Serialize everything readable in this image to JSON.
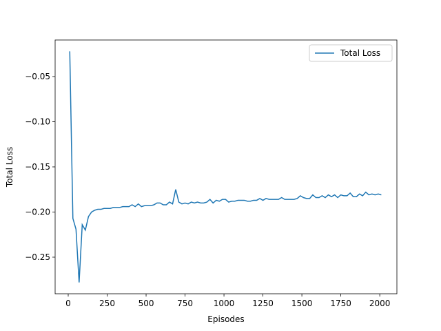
{
  "chart_data": {
    "type": "line",
    "x_label": "Episodes",
    "y_label": "Total Loss",
    "x": [
      10,
      30,
      50,
      70,
      90,
      110,
      130,
      150,
      170,
      190,
      210,
      230,
      250,
      270,
      290,
      310,
      330,
      350,
      370,
      390,
      410,
      430,
      450,
      470,
      490,
      510,
      530,
      550,
      570,
      590,
      610,
      630,
      650,
      670,
      690,
      710,
      730,
      750,
      770,
      790,
      810,
      830,
      850,
      870,
      890,
      910,
      930,
      950,
      970,
      990,
      1010,
      1030,
      1050,
      1070,
      1090,
      1110,
      1130,
      1150,
      1170,
      1190,
      1210,
      1230,
      1250,
      1270,
      1290,
      1310,
      1330,
      1350,
      1370,
      1390,
      1410,
      1430,
      1450,
      1470,
      1490,
      1510,
      1530,
      1550,
      1570,
      1590,
      1610,
      1630,
      1650,
      1670,
      1690,
      1710,
      1730,
      1750,
      1770,
      1790,
      1810,
      1830,
      1850,
      1870,
      1890,
      1910,
      1930,
      1950,
      1970,
      1990,
      2010
    ],
    "series": [
      {
        "name": "Total Loss",
        "color": "#1f77b4",
        "values": [
          -0.022,
          -0.207,
          -0.219,
          -0.278,
          -0.214,
          -0.22,
          -0.205,
          -0.2,
          -0.198,
          -0.197,
          -0.197,
          -0.196,
          -0.196,
          -0.196,
          -0.195,
          -0.195,
          -0.195,
          -0.194,
          -0.194,
          -0.194,
          -0.192,
          -0.194,
          -0.191,
          -0.194,
          -0.193,
          -0.193,
          -0.193,
          -0.192,
          -0.19,
          -0.19,
          -0.192,
          -0.192,
          -0.189,
          -0.191,
          -0.175,
          -0.189,
          -0.191,
          -0.19,
          -0.191,
          -0.189,
          -0.19,
          -0.189,
          -0.19,
          -0.19,
          -0.189,
          -0.186,
          -0.19,
          -0.187,
          -0.188,
          -0.186,
          -0.186,
          -0.189,
          -0.188,
          -0.188,
          -0.187,
          -0.187,
          -0.187,
          -0.188,
          -0.188,
          -0.187,
          -0.187,
          -0.185,
          -0.187,
          -0.185,
          -0.186,
          -0.186,
          -0.186,
          -0.186,
          -0.184,
          -0.186,
          -0.186,
          -0.186,
          -0.186,
          -0.185,
          -0.182,
          -0.184,
          -0.185,
          -0.185,
          -0.181,
          -0.184,
          -0.184,
          -0.182,
          -0.184,
          -0.181,
          -0.183,
          -0.181,
          -0.184,
          -0.181,
          -0.182,
          -0.182,
          -0.179,
          -0.183,
          -0.183,
          -0.18,
          -0.182,
          -0.178,
          -0.181,
          -0.18,
          -0.181,
          -0.18,
          -0.181
        ]
      }
    ],
    "xlim": [
      -84,
      2110
    ],
    "ylim": [
      -0.2905,
      -0.0095
    ],
    "xticks": [
      0,
      250,
      500,
      750,
      1000,
      1250,
      1500,
      1750,
      2000
    ],
    "yticks": [
      {
        "value": -0.25,
        "label": "−0.25"
      },
      {
        "value": -0.2,
        "label": "−0.20"
      },
      {
        "value": -0.15,
        "label": "−0.15"
      },
      {
        "value": -0.1,
        "label": "−0.10"
      },
      {
        "value": -0.05,
        "label": "−0.05"
      }
    ],
    "legend": "upper right"
  }
}
